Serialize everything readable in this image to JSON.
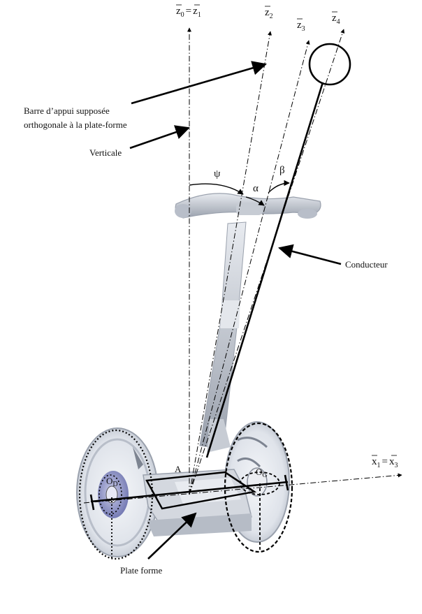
{
  "axes": {
    "z0": "z",
    "z0_sub": "0",
    "eq": "=",
    "z1": "z",
    "z1_sub": "1",
    "z2": "z",
    "z2_sub": "2",
    "z3": "z",
    "z3_sub": "3",
    "z4": "z",
    "z4_sub": "4",
    "x1": "x",
    "x1_sub": "1",
    "x_eq": "=",
    "x3": "x",
    "x3_sub": "3"
  },
  "labels": {
    "barre_line1": "Barre d’appui supposée",
    "barre_line2": "orthogonale à la plate-forme",
    "verticale": "Verticale",
    "conducteur": "Conducteur",
    "plate_forme": "Plate forme"
  },
  "angles": {
    "psi": "ψ",
    "alpha": "α",
    "beta": "β"
  },
  "points": {
    "A": "A",
    "OD": "O",
    "OD_sub": "D",
    "OG": "O",
    "OG_sub": "G"
  },
  "colors": {
    "ink": "#000000",
    "body": "#cfd3da",
    "body_dark": "#9aa1ad",
    "hub": "#8a8fc4"
  }
}
